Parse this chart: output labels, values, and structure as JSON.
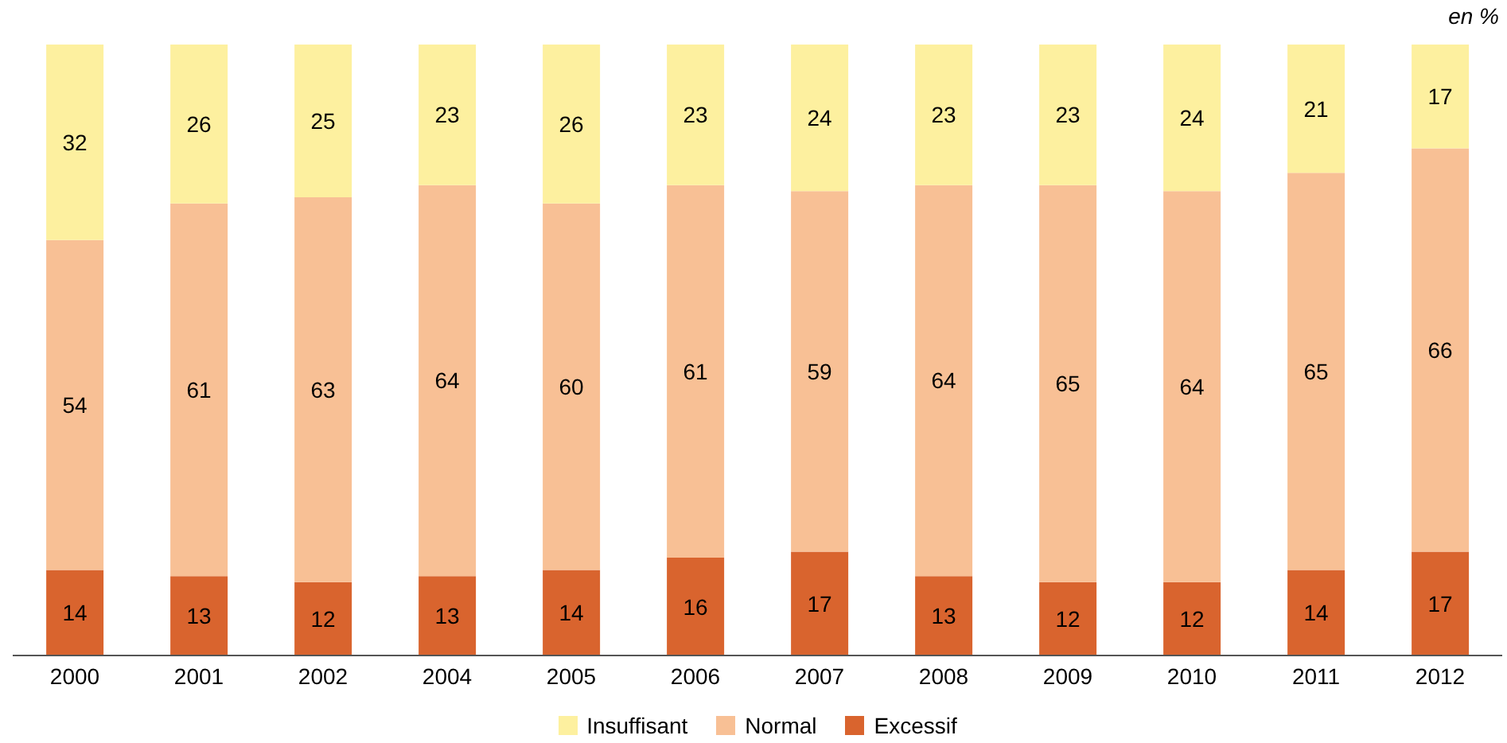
{
  "chart_data": {
    "type": "bar",
    "stacked": true,
    "categories": [
      "2000",
      "2001",
      "2002",
      "2004",
      "2005",
      "2006",
      "2007",
      "2008",
      "2009",
      "2010",
      "2011",
      "2012"
    ],
    "series": [
      {
        "name": "Excessif",
        "color": "#d9642e",
        "values": [
          14,
          13,
          12,
          13,
          14,
          16,
          17,
          13,
          12,
          12,
          14,
          17
        ]
      },
      {
        "name": "Normal",
        "color": "#f8c095",
        "values": [
          54,
          61,
          63,
          64,
          60,
          61,
          59,
          64,
          65,
          64,
          65,
          66
        ]
      },
      {
        "name": "Insuffisant",
        "color": "#fdf09f",
        "values": [
          32,
          26,
          25,
          23,
          26,
          23,
          24,
          23,
          23,
          24,
          21,
          17
        ]
      }
    ],
    "ylim": [
      0,
      100
    ],
    "tick_labels": "x",
    "data_labels": true,
    "legend": "bottom",
    "grid": false,
    "annotations": [
      "en %"
    ]
  }
}
